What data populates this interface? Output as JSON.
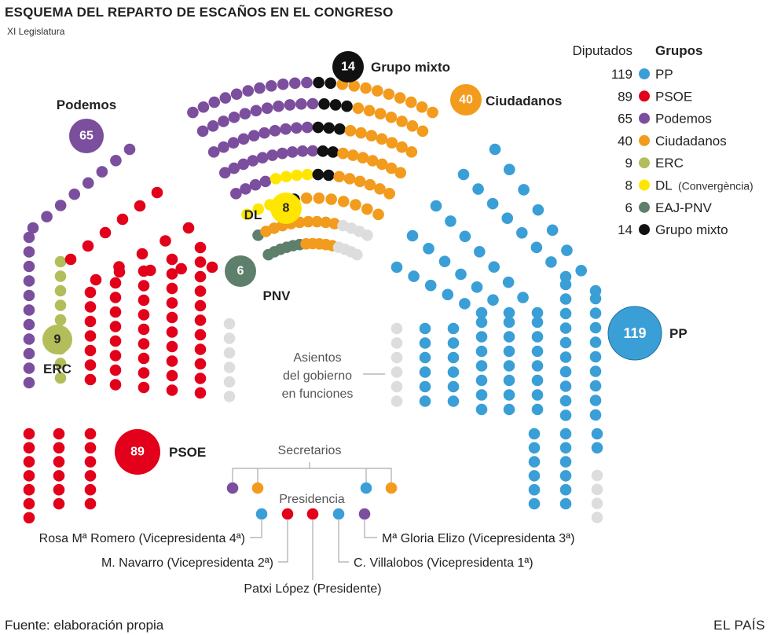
{
  "header": {
    "title": "ESQUEMA DEL REPARTO DE ESCAÑOS EN EL CONGRESO",
    "subtitle": "XI Legislatura"
  },
  "legend": {
    "col_diputados": "Diputados",
    "col_grupos": "Grupos",
    "items": [
      {
        "count": "119",
        "name": "PP",
        "color": "#3a9fd6",
        "extra": ""
      },
      {
        "count": "89",
        "name": "PSOE",
        "color": "#e2001a",
        "extra": ""
      },
      {
        "count": "65",
        "name": "Podemos",
        "color": "#7b4f9d",
        "extra": ""
      },
      {
        "count": "40",
        "name": "Ciudadanos",
        "color": "#f29b1d",
        "extra": ""
      },
      {
        "count": "9",
        "name": "ERC",
        "color": "#b3bd59",
        "extra": ""
      },
      {
        "count": "8",
        "name": "DL",
        "color": "#ffe600",
        "extra": "(Convergència)"
      },
      {
        "count": "6",
        "name": "EAJ-PNV",
        "color": "#5d7f6b",
        "extra": ""
      },
      {
        "count": "14",
        "name": "Grupo mixto",
        "color": "#111111",
        "extra": ""
      }
    ]
  },
  "bubbles": [
    {
      "group": "PP",
      "value": "119",
      "label": "PP",
      "color": "#3a9fd6",
      "text_color": "#ffffff"
    },
    {
      "group": "PSOE",
      "value": "89",
      "label": "PSOE",
      "color": "#e2001a",
      "text_color": "#ffffff"
    },
    {
      "group": "Podemos",
      "value": "65",
      "label": "Podemos",
      "color": "#7b4f9d",
      "text_color": "#ffffff"
    },
    {
      "group": "Ciudadanos",
      "value": "40",
      "label": "Ciudadanos",
      "color": "#f29b1d",
      "text_color": "#ffffff"
    },
    {
      "group": "ERC",
      "value": "9",
      "label": "ERC",
      "color": "#b3bd59",
      "text_color": "#222222"
    },
    {
      "group": "DL",
      "value": "8",
      "label": "DL",
      "color": "#ffe600",
      "text_color": "#222222"
    },
    {
      "group": "EAJ-PNV",
      "value": "6",
      "label": "PNV",
      "color": "#5d7f6b",
      "text_color": "#ffffff"
    },
    {
      "group": "Grupo mixto",
      "value": "14",
      "label": "Grupo mixto",
      "color": "#111111",
      "text_color": "#ffffff"
    }
  ],
  "annotations": {
    "government_seats": [
      "Asientos",
      "del gobierno",
      "en funciones"
    ],
    "secretaries": "Secretarios",
    "presidency": "Presidencia"
  },
  "officers": [
    {
      "name": "Rosa Mª Romero (Vicepresidenta 4ª)",
      "color": "#3a9fd6"
    },
    {
      "name": "M. Navarro (Vicepresidenta 2ª)",
      "color": "#e2001a"
    },
    {
      "name": "Patxi López (Presidente)",
      "color": "#e2001a"
    },
    {
      "name": "C. Villalobos (Vicepresidenta 1ª)",
      "color": "#3a9fd6"
    },
    {
      "name": "Mª Gloria Elizo (Vicepresidenta 3ª)",
      "color": "#7b4f9d"
    }
  ],
  "secretaries_colors": [
    "#7b4f9d",
    "#f29b1d",
    "#3a9fd6",
    "#f29b1d"
  ],
  "colors": {
    "empty_seat": "#dddddd",
    "leader_line": "#aaaaaa"
  },
  "footer": {
    "source": "Fuente: elaboración propia",
    "brand": "EL PAÍS"
  }
}
